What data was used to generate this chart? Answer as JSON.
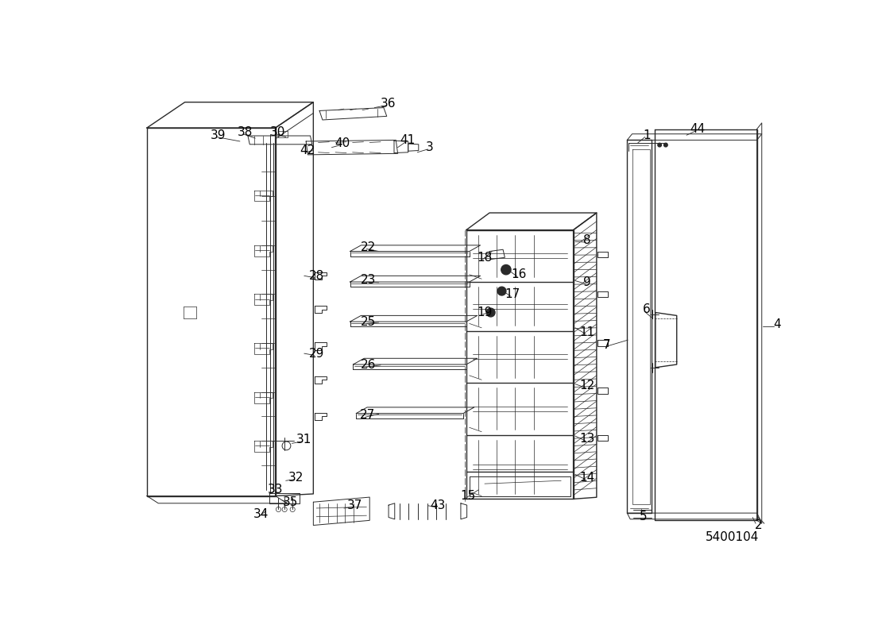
{
  "bg_color": "#ffffff",
  "line_color": "#2a2a2a",
  "label_color": "#000000",
  "title_text": "5400104",
  "figsize": [
    11.0,
    7.77
  ],
  "dpi": 100
}
